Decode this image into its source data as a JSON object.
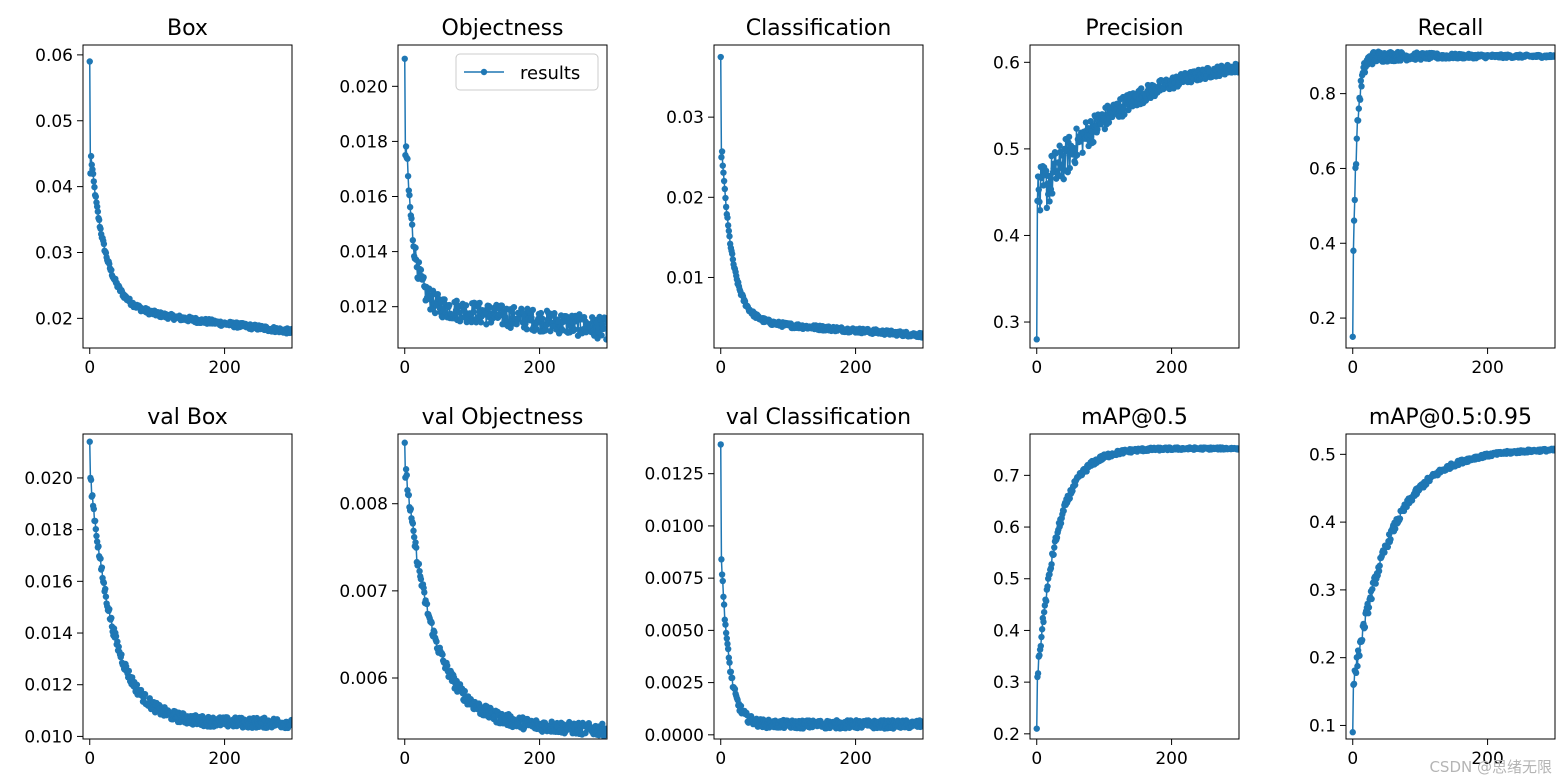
{
  "watermark": "CSDN @思绪无限",
  "legend_label": "results",
  "series_color": "#1f77b4",
  "chart_data": [
    {
      "type": "line",
      "title": "Box",
      "xlim": [
        -10,
        300
      ],
      "ylim": [
        0.0155,
        0.0615
      ],
      "xticks": [
        0,
        200
      ],
      "xtick_labels": [
        "0",
        "200"
      ],
      "yticks": [
        0.02,
        0.03,
        0.04,
        0.05,
        0.06
      ],
      "ytick_labels": [
        "0.02",
        "0.03",
        "0.04",
        "0.05",
        "0.06"
      ],
      "shape": {
        "kind": "decay",
        "start": 0.059,
        "p1": 0.042,
        "end": 0.018,
        "k": 22,
        "slope": 4e-05,
        "noise": 0.0004
      }
    },
    {
      "type": "line",
      "title": "Objectness",
      "xlim": [
        -10,
        300
      ],
      "ylim": [
        0.0105,
        0.0215
      ],
      "xticks": [
        0,
        200
      ],
      "xtick_labels": [
        "0",
        "200"
      ],
      "yticks": [
        0.012,
        0.014,
        0.016,
        0.018,
        0.02
      ],
      "ytick_labels": [
        "0.012",
        "0.014",
        "0.016",
        "0.018",
        "0.020"
      ],
      "legend": true,
      "shape": {
        "kind": "decay",
        "start": 0.021,
        "p1": 0.0175,
        "end": 0.0112,
        "k": 12,
        "slope": 1e-05,
        "noise": 0.0004
      }
    },
    {
      "type": "line",
      "title": "Classification",
      "xlim": [
        -10,
        300
      ],
      "ylim": [
        0.0012,
        0.039
      ],
      "xticks": [
        0,
        200
      ],
      "xtick_labels": [
        "0",
        "200"
      ],
      "yticks": [
        0.01,
        0.02,
        0.03
      ],
      "ytick_labels": [
        "0.01",
        "0.02",
        "0.03"
      ],
      "shape": {
        "kind": "decay",
        "start": 0.0375,
        "p1": 0.025,
        "end": 0.0028,
        "k": 16,
        "slope": 2e-05,
        "noise": 0.0003
      }
    },
    {
      "type": "line",
      "title": "Precision",
      "xlim": [
        -10,
        300
      ],
      "ylim": [
        0.27,
        0.62
      ],
      "xticks": [
        0,
        200
      ],
      "xtick_labels": [
        "0",
        "200"
      ],
      "yticks": [
        0.3,
        0.4,
        0.5,
        0.6
      ],
      "ytick_labels": [
        "0.3",
        "0.4",
        "0.5",
        "0.6"
      ],
      "shape": {
        "kind": "rise",
        "start": 0.28,
        "p1": 0.44,
        "end": 0.608,
        "k": 120,
        "slope": 0,
        "noise": 0.03
      }
    },
    {
      "type": "line",
      "title": "Recall",
      "xlim": [
        -10,
        300
      ],
      "ylim": [
        0.12,
        0.93
      ],
      "xticks": [
        0,
        200
      ],
      "xtick_labels": [
        "0",
        "200"
      ],
      "yticks": [
        0.2,
        0.4,
        0.6,
        0.8
      ],
      "ytick_labels": [
        "0.2",
        "0.4",
        "0.6",
        "0.8"
      ],
      "shape": {
        "kind": "rise",
        "start": 0.15,
        "p1": 0.38,
        "end": 0.9,
        "k": 6,
        "slope": 0,
        "noise": 0.02
      }
    },
    {
      "type": "line",
      "title": "val Box",
      "xlim": [
        -10,
        300
      ],
      "ylim": [
        0.0099,
        0.0217
      ],
      "xticks": [
        0,
        200
      ],
      "xtick_labels": [
        "0",
        "200"
      ],
      "yticks": [
        0.01,
        0.012,
        0.014,
        0.016,
        0.018,
        0.02
      ],
      "ytick_labels": [
        "0.010",
        "0.012",
        "0.014",
        "0.016",
        "0.018",
        "0.020"
      ],
      "shape": {
        "kind": "decay",
        "start": 0.0214,
        "p1": 0.02,
        "end": 0.01052,
        "k": 35,
        "slope": 0,
        "noise": 0.0002
      }
    },
    {
      "type": "line",
      "title": "val Objectness",
      "xlim": [
        -10,
        300
      ],
      "ylim": [
        0.0053,
        0.0088
      ],
      "xticks": [
        0,
        200
      ],
      "xtick_labels": [
        "0",
        "200"
      ],
      "yticks": [
        0.006,
        0.007,
        0.008
      ],
      "ytick_labels": [
        "0.006",
        "0.007",
        "0.008"
      ],
      "shape": {
        "kind": "decay",
        "start": 0.0087,
        "p1": 0.0083,
        "end": 0.0054,
        "k": 40,
        "slope": 1.2e-06,
        "noise": 7e-05
      }
    },
    {
      "type": "line",
      "title": "val Classification",
      "xlim": [
        -10,
        300
      ],
      "ylim": [
        -0.0002,
        0.0144
      ],
      "xticks": [
        0,
        200
      ],
      "xtick_labels": [
        "0",
        "200"
      ],
      "yticks": [
        0,
        0.0025,
        0.005,
        0.0075,
        0.01,
        0.0125
      ],
      "ytick_labels": [
        "0.0000",
        "0.0025",
        "0.0050",
        "0.0075",
        "0.0100",
        "0.0125"
      ],
      "shape": {
        "kind": "decay",
        "start": 0.0139,
        "p1": 0.0084,
        "end": 0.0005,
        "k": 12,
        "slope": 0,
        "noise": 0.0002
      }
    },
    {
      "type": "line",
      "title": "mAP@0.5",
      "xlim": [
        -10,
        300
      ],
      "ylim": [
        0.19,
        0.78
      ],
      "xticks": [
        0,
        200
      ],
      "xtick_labels": [
        "0",
        "200"
      ],
      "yticks": [
        0.2,
        0.3,
        0.4,
        0.5,
        0.6,
        0.7
      ],
      "ytick_labels": [
        "0.2",
        "0.3",
        "0.4",
        "0.5",
        "0.6",
        "0.7"
      ],
      "shape": {
        "kind": "rise",
        "start": 0.21,
        "p1": 0.31,
        "end": 0.752,
        "k": 30,
        "slope": 0,
        "noise": 0.01
      }
    },
    {
      "type": "line",
      "title": "mAP@0.5:0.95",
      "xlim": [
        -10,
        300
      ],
      "ylim": [
        0.08,
        0.53
      ],
      "xticks": [
        0,
        200
      ],
      "xtick_labels": [
        "0",
        "200"
      ],
      "yticks": [
        0.1,
        0.2,
        0.3,
        0.4,
        0.5
      ],
      "ytick_labels": [
        "0.1",
        "0.2",
        "0.3",
        "0.4",
        "0.5"
      ],
      "shape": {
        "kind": "rise",
        "start": 0.09,
        "p1": 0.16,
        "end": 0.508,
        "k": 55,
        "slope": 0,
        "noise": 0.01
      }
    }
  ]
}
